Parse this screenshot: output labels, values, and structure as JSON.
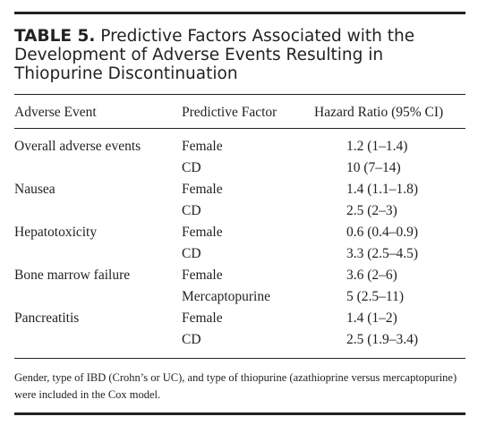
{
  "table": {
    "title_label": "TABLE 5.",
    "title_text": "Predictive Factors Associated with the Development of Adverse Events Resulting in Thiopurine Discontinuation",
    "headers": [
      "Adverse Event",
      "Predictive Factor",
      "Hazard Ratio (95% CI)"
    ],
    "groups": [
      {
        "event": "Overall adverse events",
        "rows": [
          {
            "factor": "Female",
            "hr": "1.2 (1–1.4)"
          },
          {
            "factor": "CD",
            "hr": "10 (7–14)"
          }
        ]
      },
      {
        "event": "Nausea",
        "rows": [
          {
            "factor": "Female",
            "hr": "1.4 (1.1–1.8)"
          },
          {
            "factor": "CD",
            "hr": "2.5 (2–3)"
          }
        ]
      },
      {
        "event": "Hepatotoxicity",
        "rows": [
          {
            "factor": "Female",
            "hr": "0.6 (0.4–0.9)"
          },
          {
            "factor": "CD",
            "hr": "3.3 (2.5–4.5)"
          }
        ]
      },
      {
        "event": "Bone marrow failure",
        "rows": [
          {
            "factor": "Female",
            "hr": "3.6 (2–6)"
          },
          {
            "factor": "Mercaptopurine",
            "hr": "5 (2.5–11)"
          }
        ]
      },
      {
        "event": "Pancreatitis",
        "rows": [
          {
            "factor": "Female",
            "hr": "1.4 (1–2)"
          },
          {
            "factor": "CD",
            "hr": "2.5 (1.9–3.4)"
          }
        ]
      }
    ],
    "footnote": "Gender, type of IBD (Crohn’s or UC), and type of thiopurine (azathioprine versus mercaptopurine) were included in the Cox model."
  }
}
